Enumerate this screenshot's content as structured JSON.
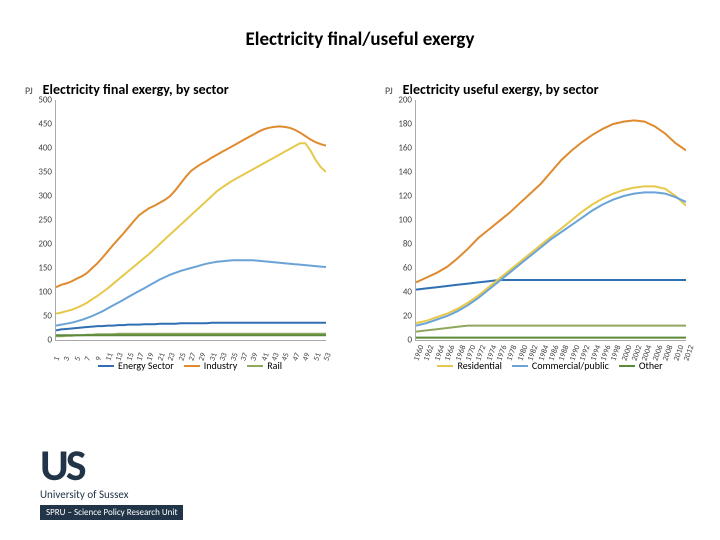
{
  "page_title": "Electricity final/useful exergy",
  "axis_unit": "PJ",
  "left_chart": {
    "title": "Electricity final exergy, by sector",
    "ymin": 0,
    "ymax": 500,
    "ytick_step": 50,
    "x_labels": [
      1,
      3,
      5,
      7,
      9,
      11,
      13,
      15,
      17,
      19,
      21,
      23,
      25,
      27,
      29,
      31,
      33,
      35,
      37,
      39,
      41,
      43,
      45,
      47,
      49,
      51,
      53
    ],
    "series": {
      "energy_sector": {
        "color": "#2f6fb3",
        "stroke": 2,
        "data": [
          20,
          22,
          23,
          24,
          25,
          26,
          27,
          28,
          29,
          29,
          30,
          30,
          31,
          31,
          32,
          32,
          32,
          33,
          33,
          33,
          34,
          34,
          34,
          34,
          35,
          35,
          35,
          35,
          35,
          35,
          36,
          36,
          36,
          36,
          36,
          36,
          36,
          36,
          36,
          36,
          36,
          36,
          36,
          36,
          36,
          36,
          36,
          36,
          36,
          36,
          36,
          36,
          36
        ]
      },
      "industry": {
        "color": "#e08a2e",
        "stroke": 2,
        "data": [
          110,
          115,
          118,
          122,
          128,
          133,
          140,
          150,
          160,
          172,
          185,
          198,
          210,
          222,
          235,
          248,
          260,
          268,
          275,
          280,
          286,
          292,
          300,
          312,
          326,
          340,
          352,
          360,
          367,
          373,
          380,
          386,
          392,
          398,
          404,
          410,
          416,
          422,
          428,
          434,
          439,
          442,
          444,
          445,
          444,
          442,
          438,
          432,
          425,
          418,
          412,
          408,
          405
        ]
      },
      "rail": {
        "color": "#8fa85e",
        "stroke": 2,
        "data": [
          8,
          8,
          9,
          9,
          10,
          10,
          11,
          11,
          12,
          12,
          12,
          12,
          13,
          13,
          13,
          13,
          13,
          13,
          13,
          13,
          13,
          13,
          13,
          13,
          13,
          13,
          13,
          13,
          13,
          13,
          13,
          13,
          13,
          13,
          13,
          13,
          13,
          13,
          13,
          13,
          13,
          13,
          13,
          13,
          13,
          13,
          13,
          13,
          13,
          13,
          13,
          13,
          13
        ]
      },
      "residential": {
        "color": "#e6c84a",
        "stroke": 2,
        "data": [
          55,
          57,
          60,
          63,
          67,
          72,
          78,
          85,
          92,
          100,
          108,
          117,
          126,
          135,
          144,
          153,
          162,
          171,
          180,
          190,
          200,
          210,
          220,
          230,
          240,
          250,
          260,
          270,
          280,
          290,
          300,
          310,
          318,
          325,
          332,
          338,
          344,
          350,
          356,
          362,
          368,
          374,
          380,
          386,
          392,
          398,
          404,
          410,
          410,
          395,
          375,
          360,
          350
        ]
      },
      "commercial": {
        "color": "#6aa3d6",
        "stroke": 2,
        "data": [
          30,
          32,
          34,
          36,
          39,
          42,
          46,
          50,
          55,
          60,
          66,
          72,
          78,
          84,
          90,
          96,
          102,
          108,
          114,
          120,
          126,
          131,
          136,
          140,
          144,
          147,
          150,
          153,
          156,
          159,
          161,
          163,
          164,
          165,
          166,
          166,
          166,
          166,
          166,
          165,
          164,
          163,
          162,
          161,
          160,
          159,
          158,
          157,
          156,
          155,
          154,
          153,
          152
        ]
      },
      "other": {
        "color": "#5a8a3a",
        "stroke": 2,
        "data": [
          10,
          10,
          10,
          10,
          10,
          10,
          10,
          10,
          10,
          10,
          10,
          10,
          10,
          10,
          10,
          10,
          10,
          10,
          10,
          10,
          10,
          10,
          10,
          10,
          10,
          10,
          10,
          10,
          10,
          10,
          10,
          10,
          10,
          10,
          10,
          10,
          10,
          10,
          10,
          10,
          10,
          10,
          10,
          10,
          10,
          10,
          10,
          10,
          10,
          10,
          10,
          10,
          10
        ]
      }
    },
    "legend_keys": [
      "energy_sector",
      "industry",
      "rail"
    ],
    "legend_labels": {
      "energy_sector": "Energy Sector",
      "industry": "Industry",
      "rail": "Rail"
    }
  },
  "right_chart": {
    "title": "Electricity useful exergy, by sector",
    "ymin": 0,
    "ymax": 200,
    "ytick_step": 20,
    "x_labels": [
      1960,
      1962,
      1964,
      1966,
      1968,
      1970,
      1972,
      1974,
      1976,
      1978,
      1980,
      1982,
      1984,
      1986,
      1988,
      1990,
      1992,
      1994,
      1996,
      1998,
      2000,
      2002,
      2004,
      2006,
      2008,
      2010,
      2012
    ],
    "series": {
      "energy_sector": {
        "color": "#2f6fb3",
        "stroke": 2,
        "data": [
          42,
          43,
          44,
          45,
          46,
          47,
          48,
          49,
          50,
          50,
          50,
          50,
          50,
          50,
          50,
          50,
          50,
          50,
          50,
          50,
          50,
          50,
          50,
          50,
          50,
          50,
          50
        ]
      },
      "industry": {
        "color": "#e08a2e",
        "stroke": 2,
        "data": [
          48,
          52,
          56,
          61,
          68,
          76,
          85,
          92,
          99,
          106,
          114,
          122,
          130,
          140,
          150,
          158,
          165,
          171,
          176,
          180,
          182,
          183,
          182,
          178,
          172,
          164,
          158
        ]
      },
      "rail": {
        "color": "#8fa85e",
        "stroke": 2,
        "data": [
          7,
          8,
          9,
          10,
          11,
          12,
          12,
          12,
          12,
          12,
          12,
          12,
          12,
          12,
          12,
          12,
          12,
          12,
          12,
          12,
          12,
          12,
          12,
          12,
          12,
          12,
          12
        ]
      },
      "residential": {
        "color": "#e6c84a",
        "stroke": 2,
        "data": [
          14,
          16,
          19,
          22,
          26,
          31,
          37,
          44,
          51,
          58,
          65,
          72,
          79,
          86,
          93,
          100,
          107,
          113,
          118,
          122,
          125,
          127,
          128,
          128,
          126,
          120,
          112
        ]
      },
      "commercial": {
        "color": "#6aa3d6",
        "stroke": 2,
        "data": [
          12,
          14,
          17,
          20,
          24,
          29,
          35,
          42,
          49,
          56,
          63,
          70,
          77,
          84,
          90,
          96,
          102,
          108,
          113,
          117,
          120,
          122,
          123,
          123,
          122,
          119,
          115
        ]
      },
      "other": {
        "color": "#5a8a3a",
        "stroke": 2,
        "data": [
          2,
          2,
          2,
          2,
          2,
          2,
          2,
          2,
          2,
          2,
          2,
          2,
          2,
          2,
          2,
          2,
          2,
          2,
          2,
          2,
          2,
          2,
          2,
          2,
          2,
          2,
          2
        ]
      }
    },
    "legend_keys": [
      "residential",
      "commercial",
      "other"
    ],
    "legend_labels": {
      "residential": "Residential",
      "commercial": "Commercial/public",
      "other": "Other"
    }
  },
  "logo": {
    "mark": "US",
    "name": "University of Sussex",
    "unit": "SPRU – Science Policy Research Unit"
  }
}
